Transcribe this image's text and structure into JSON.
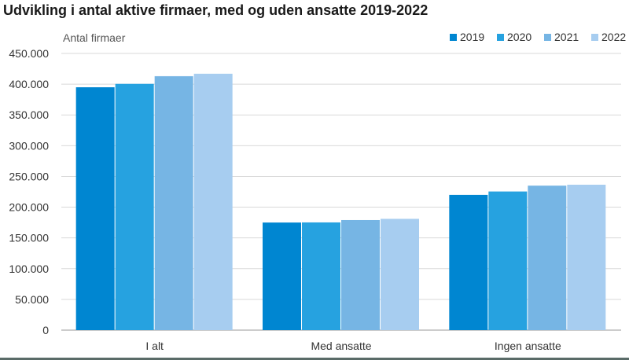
{
  "title": "Udvikling i antal aktive firmaer, med og uden ansatte 2019-2022",
  "chart_data": {
    "type": "bar",
    "title": "Udvikling i antal aktive firmaer, med og uden ansatte 2019-2022",
    "ylabel": "Antal firmaer",
    "xlabel": "",
    "categories": [
      "I alt",
      "Med ansatte",
      "Ingen ansatte"
    ],
    "series": [
      {
        "name": "2019",
        "color": "#0086d1",
        "values": [
          395000,
          175000,
          220000
        ]
      },
      {
        "name": "2020",
        "color": "#26a2e0",
        "values": [
          400500,
          175200,
          225500
        ]
      },
      {
        "name": "2021",
        "color": "#76b5e4",
        "values": [
          413000,
          179000,
          235000
        ]
      },
      {
        "name": "2022",
        "color": "#a7cdf0",
        "values": [
          417000,
          181000,
          236500
        ]
      }
    ],
    "ylim": [
      0,
      450000
    ],
    "yticks": [
      0,
      50000,
      100000,
      150000,
      200000,
      250000,
      300000,
      350000,
      400000,
      450000
    ],
    "ytick_labels": [
      "0",
      "50.000",
      "100.000",
      "150.000",
      "200.000",
      "250.000",
      "300.000",
      "350.000",
      "400.000",
      "450.000"
    ],
    "grid": true,
    "legend_position": "top-right"
  }
}
